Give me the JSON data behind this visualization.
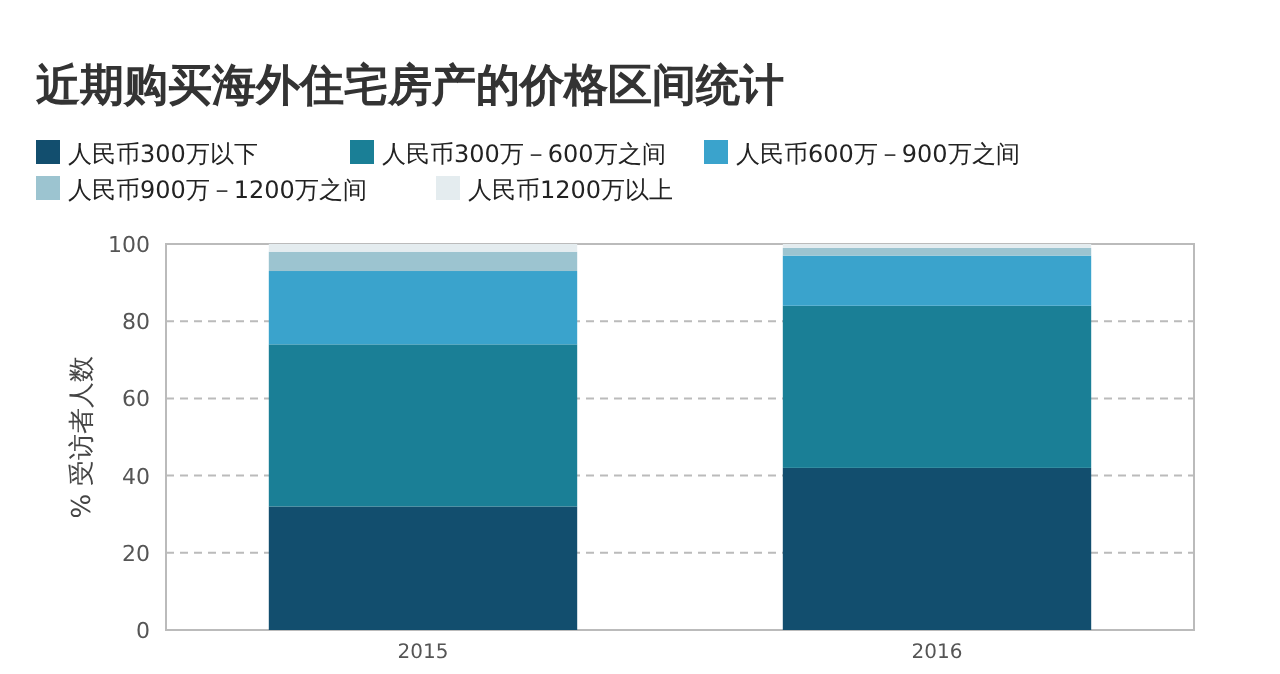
{
  "chart_data": {
    "type": "bar",
    "title": "近期购买海外住宅房产的价格区间统计",
    "ylabel": "% 受访者人数",
    "categories": [
      "2015",
      "2016"
    ],
    "stacked": true,
    "series": [
      {
        "name": "人民币300万以下",
        "color": "#124e6e",
        "values": [
          32,
          42
        ]
      },
      {
        "name": "人民币300万－600万之间",
        "color": "#1a7f96",
        "values": [
          42,
          42
        ]
      },
      {
        "name": "人民币600万－900万之间",
        "color": "#3aa3cc",
        "values": [
          19,
          13
        ]
      },
      {
        "name": "人民币900万－1200万之间",
        "color": "#9cc4d0",
        "values": [
          5,
          2
        ]
      },
      {
        "name": "人民币1200万以上",
        "color": "#e4ecef",
        "values": [
          2,
          1
        ]
      }
    ],
    "ylim": [
      0,
      100
    ],
    "yticks": [
      0,
      20,
      40,
      60,
      80,
      100
    ],
    "grid": "y",
    "legend": "top"
  }
}
